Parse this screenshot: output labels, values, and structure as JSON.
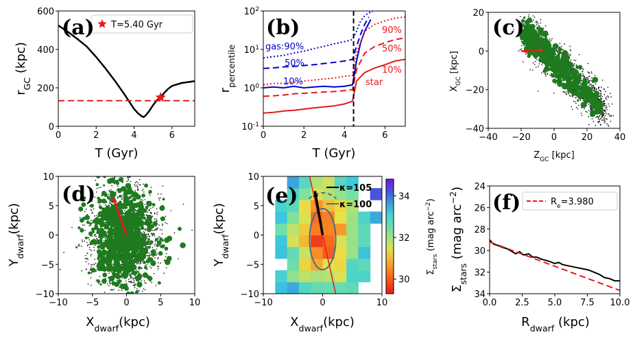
{
  "chart_data": [
    {
      "panel": "(a)",
      "type": "line",
      "xlabel": "T (Gyr)",
      "ylabel": "r",
      "ylabel_sub": "GC",
      "ylabel_unit": " (kpc)",
      "xlim": [
        0,
        7.2
      ],
      "ylim": [
        0,
        600
      ],
      "xticks": [
        "0",
        "2",
        "4",
        "6"
      ],
      "yticks": [
        "0",
        "200",
        "400",
        "600"
      ],
      "legend": "T=5.40 Gyr",
      "series": [
        {
          "name": "orbit",
          "color": "#000000",
          "x": [
            0,
            0.3,
            0.6,
            1.0,
            1.5,
            2.0,
            2.5,
            3.0,
            3.5,
            3.8,
            4.0,
            4.2,
            4.4,
            4.5,
            4.6,
            4.8,
            5.0,
            5.2,
            5.4,
            5.6,
            5.8,
            6.0,
            6.5,
            7.0,
            7.2
          ],
          "y": [
            525,
            505,
            485,
            455,
            415,
            360,
            300,
            235,
            165,
            120,
            90,
            68,
            52,
            48,
            55,
            80,
            110,
            135,
            150,
            175,
            195,
            210,
            225,
            232,
            235
          ]
        },
        {
          "name": "threshold",
          "color": "#e41a1c",
          "dashed": true,
          "x": [
            0,
            7.2
          ],
          "y": [
            133,
            133
          ]
        }
      ],
      "marker": {
        "x": 5.4,
        "y": 150
      }
    },
    {
      "panel": "(b)",
      "type": "line",
      "log_y": true,
      "xlabel": "T (Gyr)",
      "ylabel": "r",
      "ylabel_sub": "percentile",
      "xlim": [
        0,
        7
      ],
      "ylim": [
        0.1,
        100
      ],
      "xticks": [
        "0",
        "2",
        "4",
        "6"
      ],
      "yticks": [
        "10",
        "10",
        "10",
        "10"
      ],
      "ytick_exp": [
        "-1",
        "0",
        "1",
        "2"
      ],
      "vline": 4.45,
      "labels": {
        "gas90": "gas:90%",
        "gas50": "50%",
        "gas10": "10%",
        "star90": "90%",
        "star50": "50%",
        "star10": "10%",
        "star": "star"
      },
      "series": [
        {
          "name": "gas 90%",
          "color": "#0000cc",
          "style": "dotted",
          "x": [
            0,
            0.5,
            1.0,
            1.5,
            2.0,
            2.5,
            3.0,
            3.5,
            4.0,
            4.4,
            4.6,
            4.8,
            5.0,
            5.2,
            5.4
          ],
          "y": [
            6,
            6.5,
            7,
            8,
            9,
            10.5,
            12,
            14,
            16,
            18,
            30,
            55,
            75,
            90,
            95
          ]
        },
        {
          "name": "gas 50%",
          "color": "#0000cc",
          "style": "dashed",
          "x": [
            0,
            0.5,
            1.0,
            1.5,
            2.0,
            2.5,
            3.0,
            3.5,
            4.0,
            4.4,
            4.6,
            4.8,
            5.0,
            5.2
          ],
          "y": [
            3.2,
            3.3,
            3.5,
            3.6,
            3.8,
            4.0,
            4.3,
            4.6,
            5,
            5.5,
            12,
            25,
            45,
            70
          ]
        },
        {
          "name": "gas 10%",
          "color": "#0000cc",
          "style": "solid",
          "x": [
            0,
            0.5,
            1.0,
            1.5,
            2.0,
            2.5,
            3.0,
            3.5,
            4.0,
            4.4,
            4.6,
            4.8,
            5.0,
            5.3
          ],
          "y": [
            1.0,
            1.05,
            1.0,
            1.1,
            1.0,
            1.05,
            1.1,
            1.05,
            1.1,
            1.2,
            5,
            15,
            30,
            60
          ]
        },
        {
          "name": "star 90%",
          "color": "#e41a1c",
          "style": "dotted",
          "x": [
            0,
            0.5,
            1.0,
            1.5,
            2.0,
            2.5,
            3.0,
            3.5,
            4.0,
            4.4,
            4.6,
            5.0,
            5.5,
            6.0,
            6.5,
            7.0
          ],
          "y": [
            1.2,
            1.3,
            1.3,
            1.4,
            1.5,
            1.6,
            1.7,
            1.8,
            2.0,
            2.1,
            8,
            30,
            45,
            55,
            65,
            70
          ]
        },
        {
          "name": "star 50%",
          "color": "#e41a1c",
          "style": "dashed",
          "x": [
            0,
            0.5,
            1.0,
            1.5,
            2.0,
            2.5,
            3.0,
            3.5,
            4.0,
            4.4,
            4.6,
            5.0,
            5.5,
            6.0,
            6.5,
            7.0
          ],
          "y": [
            0.6,
            0.62,
            0.65,
            0.7,
            0.72,
            0.75,
            0.78,
            0.8,
            0.85,
            0.9,
            3,
            8,
            12,
            15,
            18,
            20
          ]
        },
        {
          "name": "star 10%",
          "color": "#e41a1c",
          "style": "solid",
          "x": [
            0,
            0.5,
            1.0,
            1.5,
            2.0,
            2.5,
            3.0,
            3.5,
            4.0,
            4.4,
            4.6,
            5.0,
            5.5,
            6.0,
            6.5,
            7.0
          ],
          "y": [
            0.22,
            0.23,
            0.25,
            0.26,
            0.28,
            0.3,
            0.32,
            0.34,
            0.38,
            0.45,
            1.5,
            2.5,
            3.3,
            4,
            5,
            5.5
          ]
        }
      ]
    },
    {
      "panel": "(c)",
      "type": "scatter",
      "xlabel": "Z",
      "xlabel_sub": "GC",
      "xlabel_unit": " [kpc]",
      "ylabel": "X",
      "ylabel_sub": "GC",
      "ylabel_unit": " [kpc]",
      "xlim": [
        -40,
        40
      ],
      "ylim": [
        -40,
        20
      ],
      "xticks": [
        "−40",
        "−20",
        "0",
        "20",
        "40"
      ],
      "yticks": [
        "−40",
        "−20",
        "0",
        "20"
      ],
      "arrow": {
        "from": [
          -6,
          0
        ],
        "to": [
          -20,
          0
        ]
      }
    },
    {
      "panel": "(d)",
      "type": "scatter",
      "xlabel": "X",
      "xlabel_sub": "dwarf",
      "xlabel_unit": "(kpc)",
      "ylabel": "Y",
      "ylabel_sub": "dwarf",
      "ylabel_unit": "(kpc)",
      "xlim": [
        -10,
        10
      ],
      "ylim": [
        -10,
        10
      ],
      "xticks": [
        "−10",
        "−5",
        "0",
        "5",
        "10"
      ],
      "yticks": [
        "−10",
        "−5",
        "0",
        "5",
        "10"
      ],
      "arrow": {
        "from": [
          0,
          0
        ],
        "to": [
          -2,
          6.5
        ]
      }
    },
    {
      "panel": "(e)",
      "type": "heatmap",
      "xlabel": "X",
      "xlabel_sub": "dwarf",
      "xlabel_unit": "(kpc)",
      "ylabel": "Y",
      "ylabel_sub": "dwarf",
      "ylabel_unit": "(kpc)",
      "xlim": [
        -10,
        10
      ],
      "ylim": [
        -10,
        10
      ],
      "xticks": [
        "−10",
        "0",
        "10"
      ],
      "yticks": [
        "−10",
        "−5",
        "0",
        "5",
        "10"
      ],
      "colorbar": {
        "label": "Σ",
        "label_sub": "stars",
        "label_unit": " (mag arc",
        "label_sup": "−2",
        "label_end": ")",
        "ticks": [
          "30",
          "32",
          "34"
        ],
        "range": [
          29.3,
          34.8
        ]
      },
      "legend": [
        "κ=105",
        "κ=100"
      ],
      "arrow": {
        "from": [
          0,
          0
        ],
        "to": [
          -1.3,
          7.5
        ]
      }
    },
    {
      "panel": "(f)",
      "type": "line",
      "xlabel": "R",
      "xlabel_sub": "dwarf",
      "xlabel_unit": " (kpc)",
      "ylabel": "Σ",
      "ylabel_sub": "stars",
      "ylabel_unit": " (mag arc",
      "ylabel_sup": "−2",
      "ylabel_end": ")",
      "xlim": [
        0,
        10
      ],
      "ylim": [
        34,
        24
      ],
      "inverted_y": true,
      "xticks": [
        "0.0",
        "2.5",
        "5.0",
        "7.5",
        "10.0"
      ],
      "yticks": [
        "24",
        "26",
        "28",
        "30",
        "32",
        "34"
      ],
      "legend": "R",
      "legend_sub": "e",
      "legend_val": "=3.980",
      "series": [
        {
          "name": "profile",
          "color": "#000000",
          "x": [
            0,
            0.3,
            0.6,
            1.0,
            1.3,
            1.6,
            2.0,
            2.3,
            2.6,
            3.0,
            3.3,
            3.6,
            4.0,
            4.3,
            4.6,
            5.0,
            5.3,
            5.6,
            6.0,
            6.4,
            6.8,
            7.2,
            7.6,
            8.0,
            8.4,
            8.8,
            9.2,
            9.6,
            10.0
          ],
          "y": [
            29.0,
            29.4,
            29.5,
            29.7,
            29.8,
            30.0,
            30.3,
            30.1,
            30.4,
            30.3,
            30.6,
            30.6,
            30.8,
            30.9,
            31.0,
            31.2,
            31.1,
            31.3,
            31.4,
            31.5,
            31.6,
            31.7,
            31.8,
            32.0,
            32.2,
            32.5,
            32.6,
            32.8,
            32.8
          ]
        },
        {
          "name": "Re fit",
          "color": "#e41a1c",
          "dashed": true,
          "x": [
            0,
            10
          ],
          "y": [
            29.2,
            33.7
          ]
        }
      ]
    }
  ]
}
